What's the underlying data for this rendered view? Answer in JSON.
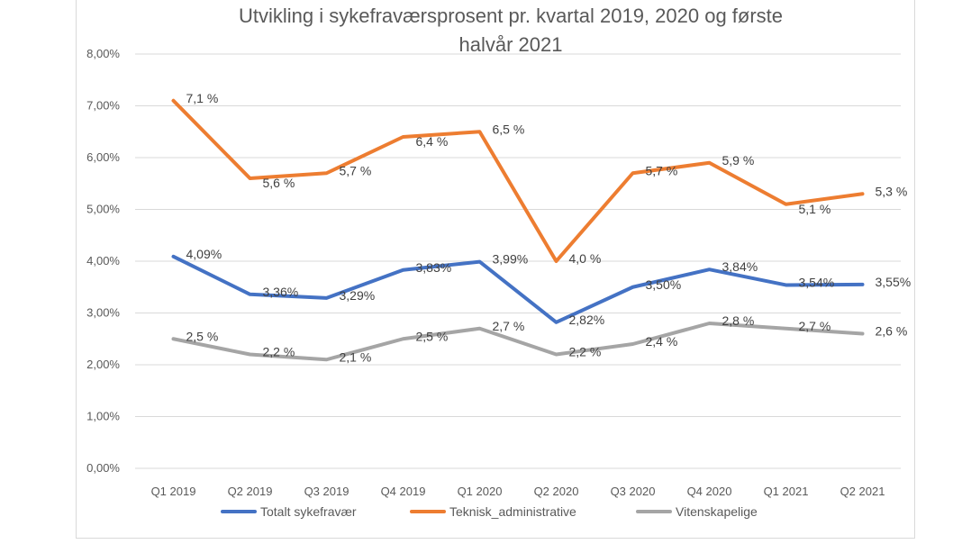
{
  "chart_data": {
    "type": "line",
    "title_line1": "Utvikling i sykefraværsprosent pr. kvartal 2019, 2020 og første",
    "title_line2": "halvår 2021",
    "categories": [
      "Q1 2019",
      "Q2 2019",
      "Q3 2019",
      "Q4 2019",
      "Q1 2020",
      "Q2 2020",
      "Q3 2020",
      "Q4 2020",
      "Q1 2021",
      "Q2 2021"
    ],
    "ylim": [
      0,
      8
    ],
    "yticks": [
      "0,00%",
      "1,00%",
      "2,00%",
      "3,00%",
      "4,00%",
      "5,00%",
      "6,00%",
      "7,00%",
      "8,00%"
    ],
    "grid": true,
    "legend_position": "bottom",
    "series": [
      {
        "name": "Totalt sykefravær",
        "color": "#4472c4",
        "values": [
          4.09,
          3.36,
          3.29,
          3.83,
          3.99,
          2.82,
          3.5,
          3.84,
          3.54,
          3.55
        ],
        "labels": [
          "4,09%",
          "3,36%",
          "3,29%",
          "3,83%",
          "3,99%",
          "2,82%",
          "3,50%",
          "3,84%",
          "3,54%",
          "3,55%"
        ]
      },
      {
        "name": "Teknisk_administrative",
        "color": "#ed7d31",
        "values": [
          7.1,
          5.6,
          5.7,
          6.4,
          6.5,
          4.0,
          5.7,
          5.9,
          5.1,
          5.3
        ],
        "labels": [
          "7,1 %",
          "5,6 %",
          "5,7 %",
          "6,4 %",
          "6,5 %",
          "4,0 %",
          "5,7 %",
          "5,9 %",
          "5,1 %",
          "5,3 %"
        ]
      },
      {
        "name": "Vitenskapelige",
        "color": "#a5a5a5",
        "values": [
          2.5,
          2.2,
          2.1,
          2.5,
          2.7,
          2.2,
          2.4,
          2.8,
          2.7,
          2.6
        ],
        "labels": [
          "2,5 %",
          "2,2 %",
          "2,1 %",
          "2,5 %",
          "2,7 %",
          "2,2 %",
          "2,4 %",
          "2,8 %",
          "2,7 %",
          "2,6 %"
        ]
      }
    ]
  }
}
